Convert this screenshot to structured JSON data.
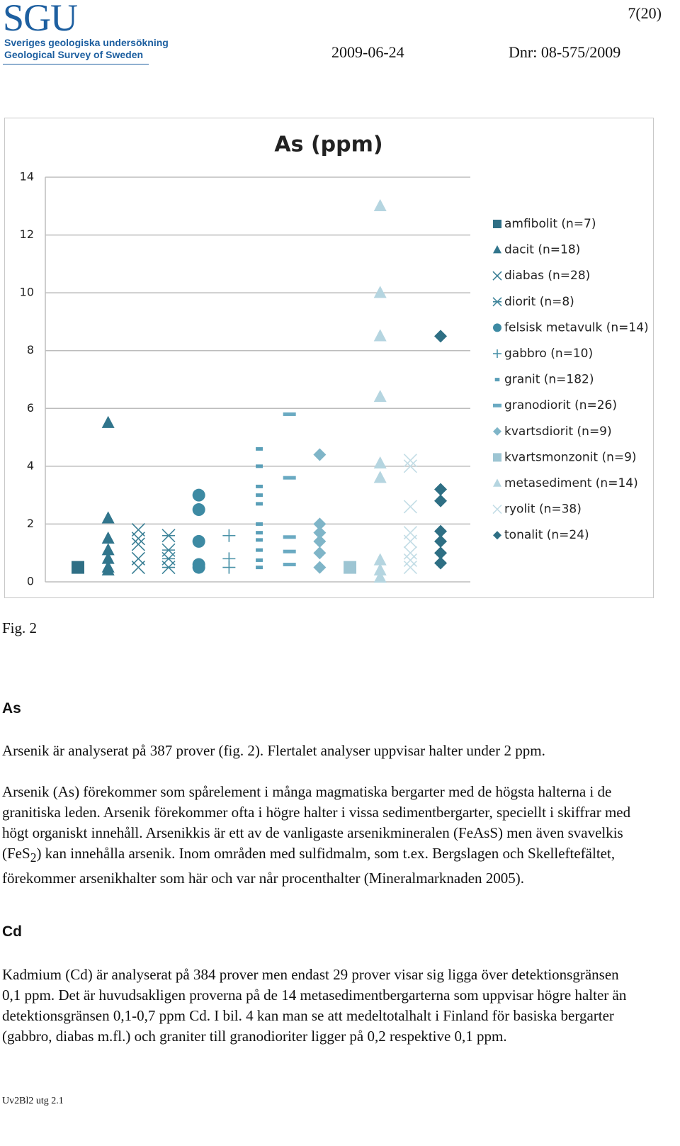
{
  "header": {
    "logo": "SGU",
    "org_sv": "Sveriges geologiska undersökning",
    "org_en": "Geological Survey of Sweden",
    "page": "7(20)",
    "date": "2009-06-24",
    "dnr": "Dnr: 08-575/2009"
  },
  "chart_data": {
    "type": "strip",
    "title": "As (ppm)",
    "ylim": [
      0,
      14
    ],
    "yticks": [
      0,
      2,
      4,
      6,
      8,
      10,
      12,
      14
    ],
    "grid": true,
    "legend": "right",
    "series": [
      {
        "name": "amfibolit (n=7)",
        "color": "#2f6f85",
        "marker": "square",
        "values": [
          0.5
        ]
      },
      {
        "name": "dacit (n=18)",
        "color": "#31758c",
        "marker": "triangle",
        "values": [
          5.5,
          2.2,
          1.5,
          1.1,
          0.8,
          0.5,
          0.4
        ]
      },
      {
        "name": "diabas (n=28)",
        "color": "#3a7f95",
        "marker": "x",
        "values": [
          1.8,
          1.5,
          1.3,
          0.8,
          0.5
        ]
      },
      {
        "name": "diorit (n=8)",
        "color": "#3f859b",
        "marker": "asterisk",
        "values": [
          1.6,
          1.1,
          0.8,
          0.5
        ]
      },
      {
        "name": "felsisk metavulk (n=14)",
        "color": "#3d8aa3",
        "marker": "circle",
        "values": [
          3.0,
          2.5,
          1.4,
          0.6,
          0.5
        ]
      },
      {
        "name": "gabbro (n=10)",
        "color": "#4a92a8",
        "marker": "plus",
        "values": [
          1.6,
          0.8,
          0.5
        ]
      },
      {
        "name": "granit (n=182)",
        "color": "#5a9fb8",
        "marker": "short-dash",
        "values": [
          4.6,
          4.0,
          3.3,
          3.0,
          2.7,
          2.0,
          1.7,
          1.45,
          1.1,
          0.75,
          0.5
        ]
      },
      {
        "name": "granodiorit (n=26)",
        "color": "#6aaac2",
        "marker": "long-dash",
        "values": [
          5.8,
          3.6,
          1.55,
          1.05,
          0.6
        ]
      },
      {
        "name": "kvartsdiorit (n=9)",
        "color": "#7fb5c8",
        "marker": "diamond",
        "values": [
          4.4,
          2.0,
          1.7,
          1.4,
          1.0,
          0.5
        ]
      },
      {
        "name": "kvartsmonzonit (n=9)",
        "color": "#9dc5d3",
        "marker": "square",
        "values": [
          0.5
        ]
      },
      {
        "name": "metasediment (n=14)",
        "color": "#b5d5e0",
        "marker": "triangle",
        "values": [
          13.0,
          10.0,
          8.5,
          6.4,
          4.1,
          3.6,
          0.75,
          0.4,
          0.15
        ]
      },
      {
        "name": "ryolit (n=38)",
        "color": "#c3dde6",
        "marker": "x",
        "values": [
          4.2,
          4.0,
          2.6,
          1.7,
          1.4,
          1.0,
          0.75,
          0.5
        ]
      },
      {
        "name": "tonalit (n=24)",
        "color": "#2e6f84",
        "marker": "diamond",
        "values": [
          8.5,
          3.2,
          2.8,
          1.75,
          1.4,
          1.0,
          0.65
        ]
      }
    ]
  },
  "figure_caption": "Fig. 2",
  "sections": [
    {
      "heading": "As",
      "paragraphs": [
        "Arsenik är analyserat på 387 prover (fig. 2). Flertalet analyser uppvisar halter under 2 ppm.",
        [
          "Arsenik (As) förekommer som spårelement i många magmatiska bergarter med de högsta halterna i de granitiska leden. Arsenik förekommer ofta i högre halter i vissa sedimentbergarter, speciellt i skiffrar med högt organiskt innehåll. Arsenikkis är ett av de vanligaste arsenikmineralen (FeAsS) men även svavelkis (FeS",
          "2",
          ") kan innehålla arsenik. Inom områden med sulfidmalm, som t.ex. Bergslagen och Skelleftefältet, förekommer arsenikhalter som här och var når procenthalter (Mineralmarknaden 2005)."
        ]
      ]
    },
    {
      "heading": "Cd",
      "paragraphs": [
        "Kadmium (Cd) är analyserat på 384 prover men endast 29 prover visar sig ligga över detektionsgränsen 0,1 ppm. Det är huvudsakligen proverna på de 14 metasedimentbergarterna som uppvisar högre halter än detektionsgränsen 0,1-0,7 ppm Cd. I bil. 4 kan man se att medeltotalhalt i Finland för basiska bergarter (gabbro, diabas m.fl.) och graniter till granodioriter ligger på 0,2 respektive 0,1 ppm."
      ]
    }
  ],
  "footer": "Uv2Bl2  utg 2.1"
}
